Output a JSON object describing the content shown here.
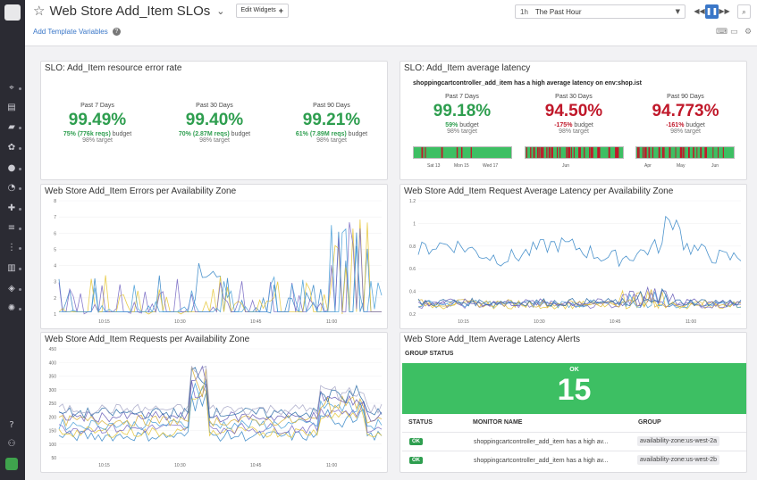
{
  "dashboard": {
    "title": "Web Store Add_Item SLOs",
    "edit_widgets": "Edit Widgets",
    "template_vars": "Add Template Variables"
  },
  "timepicker": {
    "short": "1h",
    "label": "The Past Hour"
  },
  "slo_error": {
    "title": "SLO: Add_Item resource error rate",
    "cols": [
      {
        "period": "Past 7 Days",
        "value": "99.49%",
        "budget_pct": "75%",
        "budget_reqs": "(776k reqs)",
        "budget_word": "budget",
        "target": "98% target"
      },
      {
        "period": "Past 30 Days",
        "value": "99.40%",
        "budget_pct": "70%",
        "budget_reqs": "(2.87M reqs)",
        "budget_word": "budget",
        "target": "98% target"
      },
      {
        "period": "Past 90 Days",
        "value": "99.21%",
        "budget_pct": "61%",
        "budget_reqs": "(7.89M reqs)",
        "budget_word": "budget",
        "target": "98% target"
      }
    ]
  },
  "slo_latency": {
    "title": "SLO: Add_Item average latency",
    "subtitle": "shoppingcartcontroller_add_item has a high average latency on env:shop.ist",
    "cols": [
      {
        "period": "Past 7 Days",
        "value": "99.18%",
        "budget_pct": "59%",
        "budget_word": "budget",
        "target": "98% target"
      },
      {
        "period": "Past 30 Days",
        "value": "94.50%",
        "budget_pct": "-175%",
        "budget_word": "budget",
        "target": "98% target"
      },
      {
        "period": "Past 90 Days",
        "value": "94.773%",
        "budget_pct": "-161%",
        "budget_word": "budget",
        "target": "98% target"
      }
    ],
    "hist_labels": [
      [
        "Sat 13",
        "Mon 15",
        "Wed 17"
      ],
      [
        "Jun"
      ],
      [
        "Apr",
        "May",
        "Jun"
      ]
    ]
  },
  "errors_chart": {
    "title": "Web Store Add_Item Errors per Availability Zone",
    "y_ticks": [
      "8",
      "7",
      "6",
      "5",
      "4",
      "3",
      "2",
      "1"
    ],
    "x_ticks": [
      "10:15",
      "10:30",
      "10:45",
      "11:00"
    ]
  },
  "latency_chart": {
    "title": "Web Store Add_Item Request Average Latency per Availability Zone",
    "y_ticks": [
      "1.2",
      "1",
      "0.8",
      "0.6",
      "0.4",
      "0.2"
    ],
    "x_ticks": [
      "10:15",
      "10:30",
      "10:45",
      "11:00"
    ]
  },
  "requests_chart": {
    "title": "Web Store Add_Item Requests per Availability Zone",
    "y_ticks": [
      "450",
      "400",
      "350",
      "300",
      "250",
      "200",
      "150",
      "100",
      "50"
    ],
    "x_ticks": [
      "10:15",
      "10:30",
      "10:45",
      "11:00"
    ]
  },
  "alerts": {
    "title": "Web Store Add_Item Average Latency Alerts",
    "group_status": "GROUP STATUS",
    "ok_label": "OK",
    "count": "15",
    "headers": {
      "status": "STATUS",
      "monitor": "MONITOR NAME",
      "group": "GROUP"
    },
    "rows": [
      {
        "status": "OK",
        "monitor": "shoppingcartcontroller_add_item has a high av...",
        "group": "availability-zone:us-west-2a"
      },
      {
        "status": "OK",
        "monitor": "shoppingcartcontroller_add_item has a high av...",
        "group": "availability-zone:us-west-2b"
      }
    ]
  },
  "colors": {
    "accent": "#3a77c8",
    "ok": "#3dbf63",
    "good": "#2e9e4f",
    "bad": "#c0182a"
  }
}
